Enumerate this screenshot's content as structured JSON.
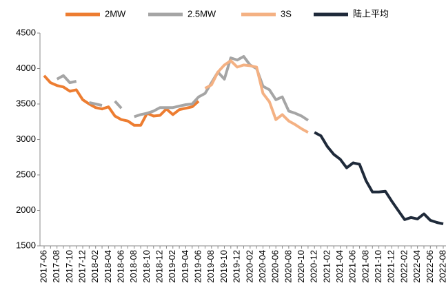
{
  "chart_data": {
    "type": "line",
    "categories": [
      "2017-06",
      null,
      "2017-08",
      null,
      "2017-10",
      null,
      "2017-12",
      null,
      "2018-02",
      null,
      "2018-04",
      null,
      "2018-06",
      null,
      "2018-08",
      null,
      "2018-10",
      null,
      "2018-12",
      null,
      "2019-02",
      null,
      "2019-04",
      null,
      "2019-06",
      null,
      "2019-08",
      null,
      "2019-10",
      null,
      "2019-12",
      null,
      "2020-02",
      null,
      "2020-04",
      null,
      "2020-06",
      null,
      "2020-08",
      null,
      "2020-10",
      null,
      "2020-12",
      null,
      "2021-02",
      null,
      "2021-04",
      null,
      "2021-06",
      null,
      "2021-08",
      null,
      "2021-10",
      null,
      "2021-12",
      null,
      "2022-02",
      null,
      "2022-04",
      null,
      "2022-06",
      null,
      "2022-08"
    ],
    "series": [
      {
        "name": "2MW",
        "color": "#ed7d31",
        "values": [
          3900,
          3800,
          3760,
          3740,
          3680,
          3700,
          3560,
          3500,
          3450,
          3430,
          3460,
          3330,
          3280,
          3260,
          3200,
          3200,
          3370,
          3330,
          3340,
          3430,
          3350,
          3420,
          3440,
          3460,
          3540,
          null,
          null,
          null,
          null,
          null,
          null,
          null,
          null,
          null,
          null,
          null,
          null,
          null,
          null,
          null,
          null,
          null,
          null,
          null,
          null,
          null,
          null,
          null,
          null,
          null,
          null,
          null,
          null,
          null,
          null,
          null,
          null,
          null,
          null,
          null,
          null,
          null,
          null
        ]
      },
      {
        "name": "2.5MW",
        "color": "#a5a5a5",
        "values": [
          null,
          null,
          3850,
          3900,
          3800,
          3820,
          null,
          3520,
          3500,
          3480,
          null,
          3540,
          3440,
          null,
          3320,
          3350,
          3370,
          3400,
          3450,
          3450,
          3450,
          3470,
          3490,
          3500,
          3600,
          3650,
          3800,
          3950,
          3850,
          4150,
          4120,
          4170,
          4050,
          4000,
          3750,
          3700,
          3560,
          3600,
          3400,
          3370,
          3330,
          3270,
          null,
          null,
          null,
          null,
          null,
          null,
          null,
          null,
          null,
          null,
          null,
          null,
          null,
          null,
          null,
          null,
          null,
          null,
          null,
          null,
          null
        ]
      },
      {
        "name": "3S",
        "color": "#f4b183",
        "values": [
          null,
          null,
          null,
          null,
          null,
          null,
          null,
          null,
          null,
          null,
          null,
          null,
          null,
          null,
          null,
          null,
          null,
          null,
          null,
          null,
          null,
          null,
          null,
          null,
          null,
          3720,
          3770,
          3950,
          4050,
          4110,
          4020,
          4050,
          4040,
          4020,
          3650,
          3530,
          3280,
          3350,
          3260,
          3210,
          3150,
          3100,
          null,
          null,
          null,
          null,
          null,
          null,
          null,
          null,
          null,
          null,
          null,
          null,
          null,
          null,
          null,
          null,
          null,
          null,
          null,
          null,
          null
        ]
      },
      {
        "name": "陆上平均",
        "color": "#1f2a3a",
        "values": [
          null,
          null,
          null,
          null,
          null,
          null,
          null,
          null,
          null,
          null,
          null,
          null,
          null,
          null,
          null,
          null,
          null,
          null,
          null,
          null,
          null,
          null,
          null,
          null,
          null,
          null,
          null,
          null,
          null,
          null,
          null,
          null,
          null,
          null,
          null,
          null,
          null,
          null,
          null,
          null,
          null,
          null,
          3100,
          3050,
          2900,
          2790,
          2720,
          2600,
          2670,
          2650,
          2420,
          2260,
          2260,
          2270,
          2130,
          2000,
          1870,
          1900,
          1880,
          1950,
          1860,
          1830,
          1810
        ]
      }
    ],
    "ylim": [
      1500,
      4500
    ],
    "yticks": [
      1500,
      2000,
      2500,
      3000,
      3500,
      4000,
      4500
    ],
    "grid": false,
    "legend": "top"
  }
}
